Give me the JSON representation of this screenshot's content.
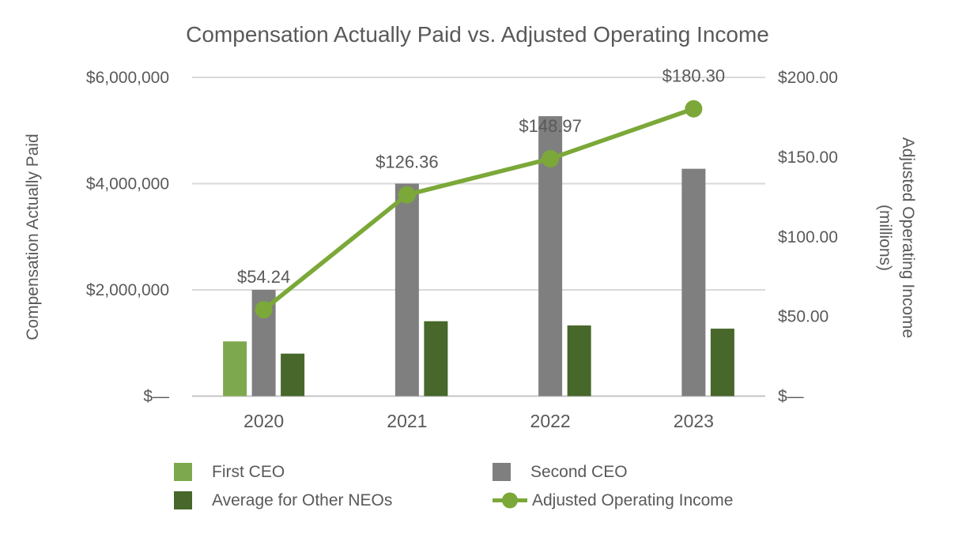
{
  "chart_data": {
    "type": "combo",
    "title": "Compensation Actually Paid vs. Adjusted Operating Income",
    "categories": [
      "2020",
      "2021",
      "2022",
      "2023"
    ],
    "series": [
      {
        "name": "First CEO",
        "type": "bar",
        "axis": "left",
        "color": "#7EA84D",
        "values": [
          1030000,
          null,
          null,
          null
        ]
      },
      {
        "name": "Second CEO",
        "type": "bar",
        "axis": "left",
        "color": "#7F7F7F",
        "values": [
          2000000,
          4000000,
          5270000,
          4280000
        ]
      },
      {
        "name": "Average for Other NEOs",
        "type": "bar",
        "axis": "left",
        "color": "#47672B",
        "values": [
          800000,
          1410000,
          1330000,
          1270000
        ]
      },
      {
        "name": "Adjusted Operating Income",
        "type": "line",
        "axis": "right",
        "color": "#7BA838",
        "values": [
          54.24,
          126.36,
          148.97,
          180.3
        ],
        "labels": [
          "$54.24",
          "$126.36",
          "$148.97",
          "$180.30"
        ]
      }
    ],
    "left_axis": {
      "title": "Compensation Actually Paid",
      "min": 0,
      "max": 6000000,
      "ticks": [
        {
          "label": "$6,000,000",
          "value": 6000000
        },
        {
          "label": "$4,000,000",
          "value": 4000000
        },
        {
          "label": "$2,000,000",
          "value": 2000000
        },
        {
          "label": "$—",
          "value": 0
        }
      ]
    },
    "right_axis": {
      "title_line1": "Adjusted Operating Income",
      "title_line2": "(millions)",
      "min": 0,
      "max": 200,
      "ticks": [
        {
          "label": "$200.00",
          "value": 200
        },
        {
          "label": "$150.00",
          "value": 150
        },
        {
          "label": "$100.00",
          "value": 100
        },
        {
          "label": "$50.00",
          "value": 50
        },
        {
          "label": "$—",
          "value": 0
        }
      ]
    },
    "gridlines": {
      "values": [
        6000000,
        4000000,
        2000000
      ],
      "color": "#D9D9D9",
      "baseline_color": "#C4C4C4"
    },
    "legend_position": "bottom",
    "text_color": "#595959",
    "background": "#FFFFFF"
  }
}
